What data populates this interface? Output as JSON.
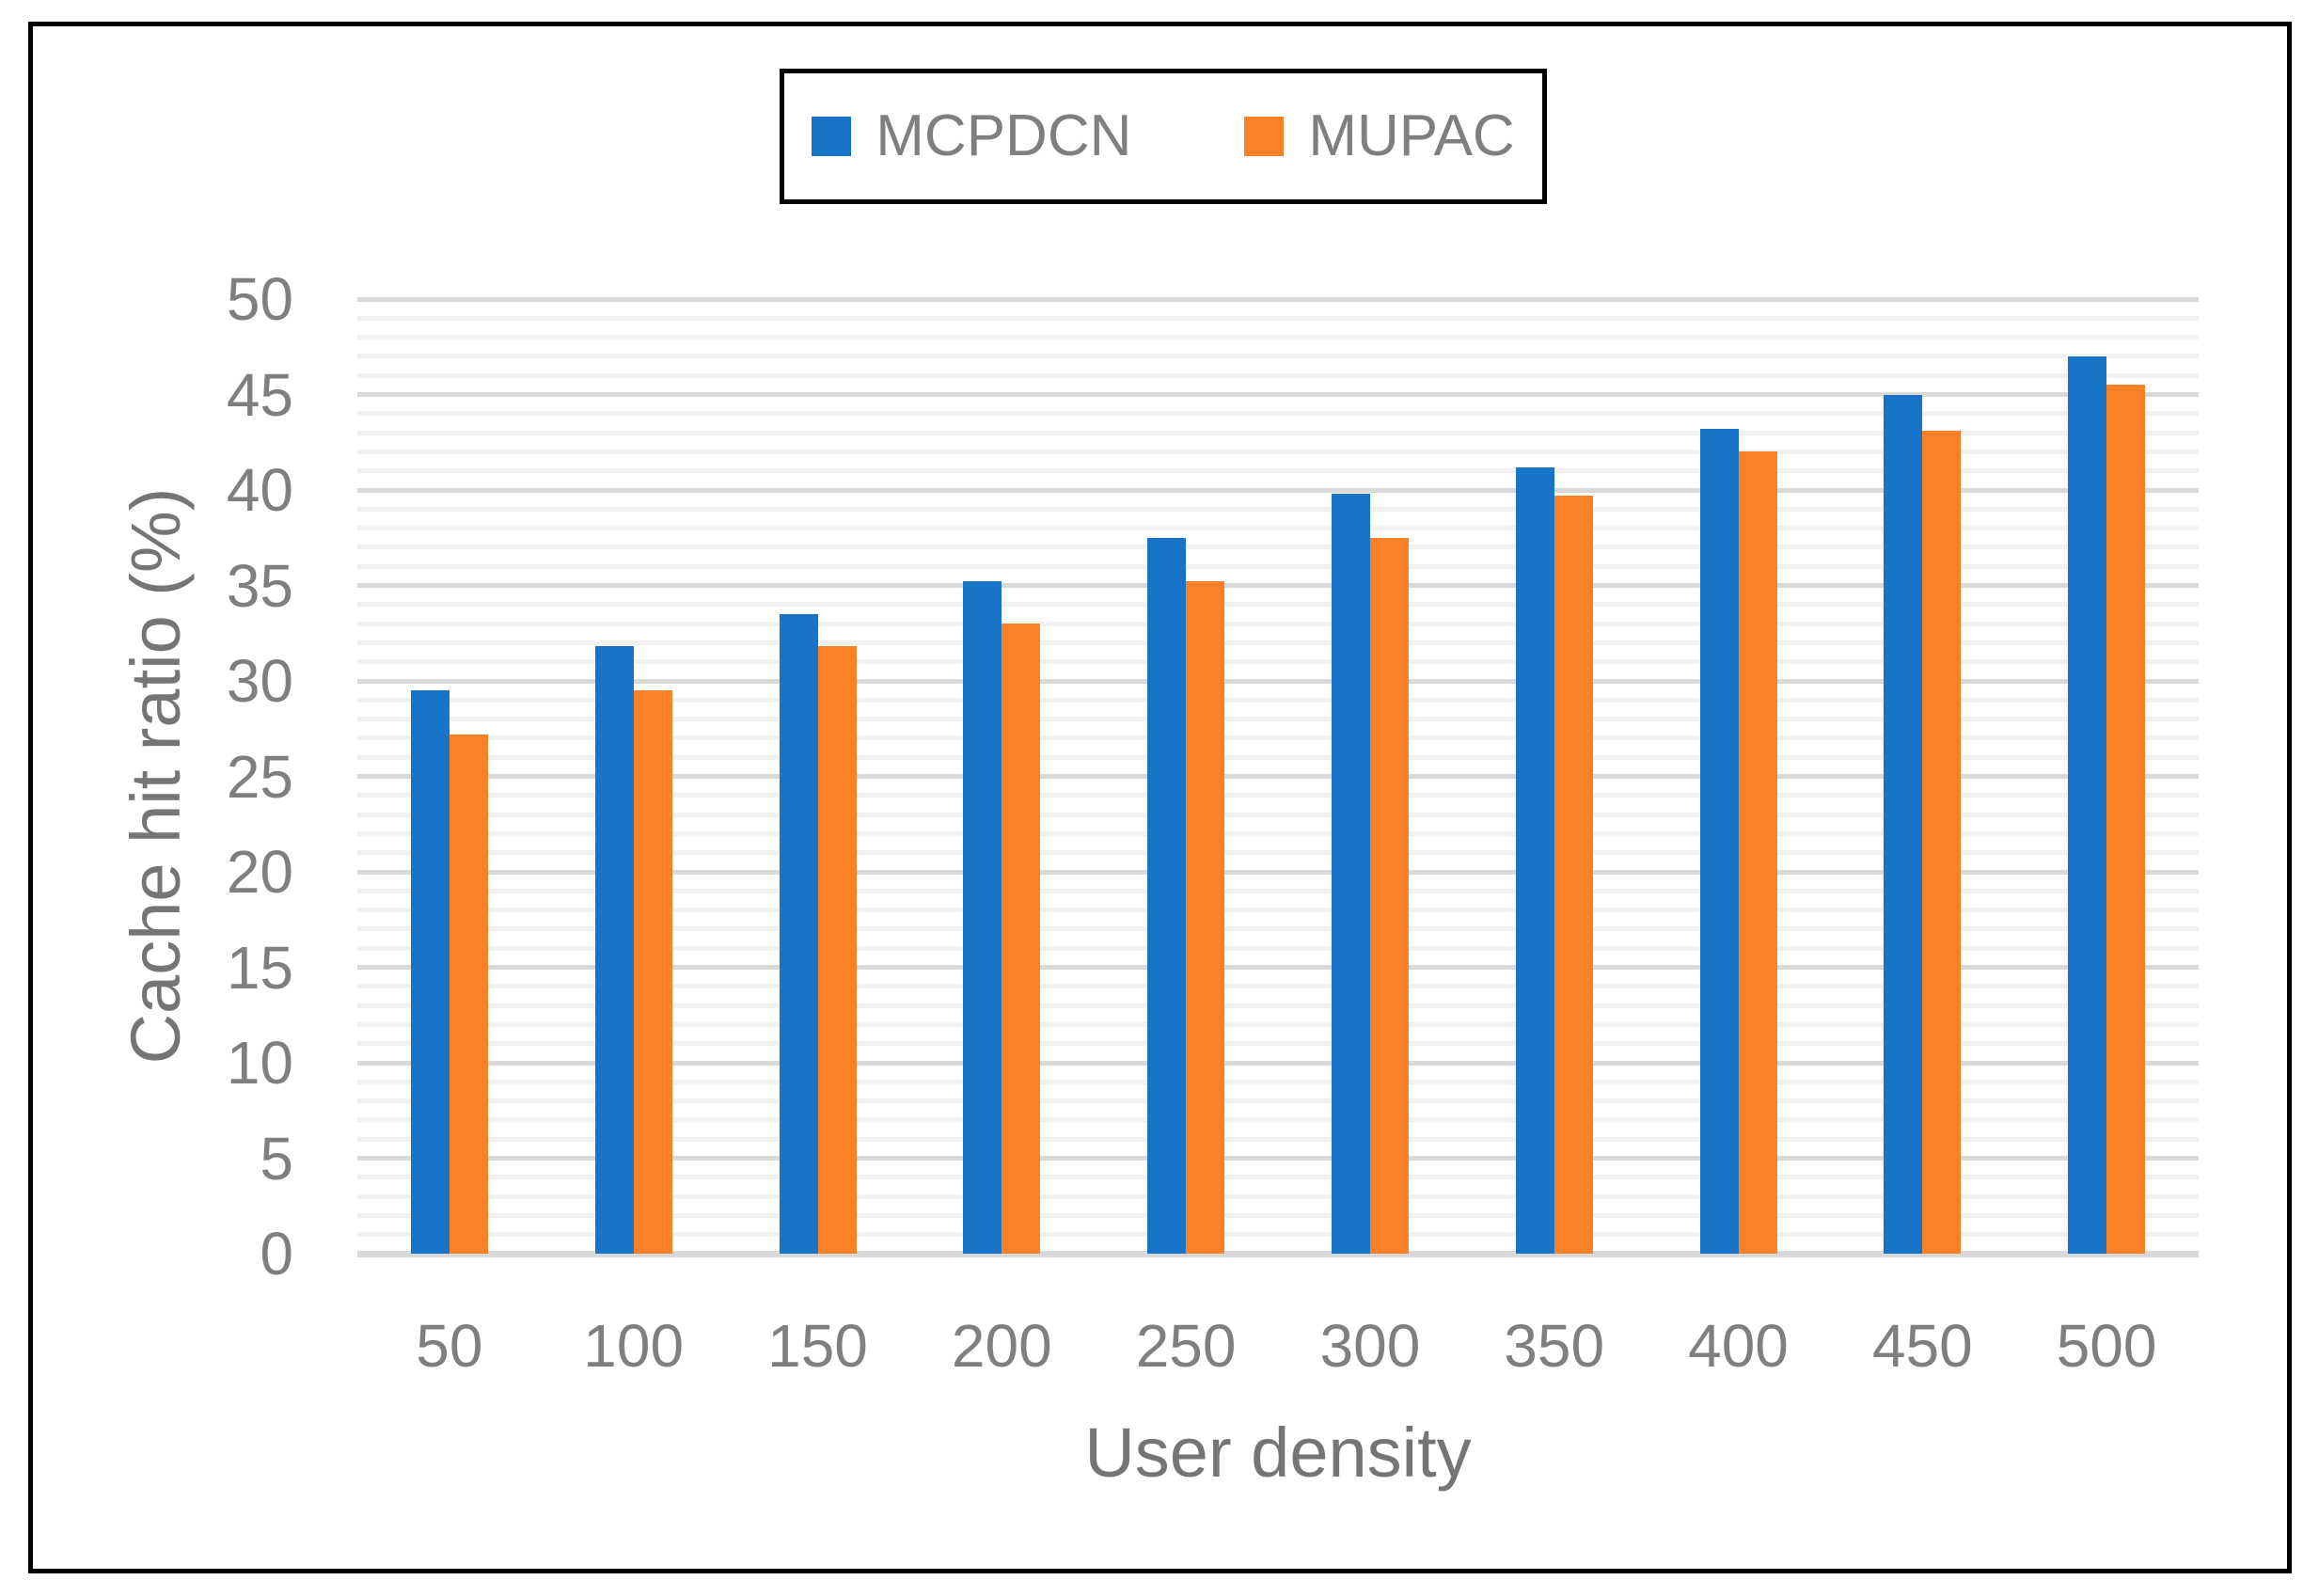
{
  "chart_data": {
    "type": "bar",
    "title": "",
    "xlabel": "User density",
    "ylabel": "Cache hit ratio (%)",
    "categories": [
      "50",
      "100",
      "150",
      "200",
      "250",
      "300",
      "350",
      "400",
      "450",
      "500"
    ],
    "series": [
      {
        "name": "MCPDCN",
        "color": "#1874C8",
        "values": [
          29.5,
          31.8,
          33.5,
          35.2,
          37.5,
          39.8,
          41.2,
          43.2,
          45.0,
          47.0
        ]
      },
      {
        "name": "MUPAC",
        "color": "#FC8026",
        "values": [
          27.2,
          29.5,
          31.8,
          33.0,
          35.2,
          37.5,
          39.7,
          42.0,
          43.1,
          45.5
        ]
      }
    ],
    "ylim": [
      0,
      50
    ],
    "ytick_step": 5,
    "yticks": [
      0,
      5,
      10,
      15,
      20,
      25,
      30,
      35,
      40,
      45,
      50
    ],
    "minor_grid_step": 1,
    "grid": true,
    "legend_position": "top-center"
  },
  "legend": {
    "items": [
      {
        "label": "MCPDCN"
      },
      {
        "label": "MUPAC"
      }
    ]
  },
  "styles": {
    "series1_color": "#1874C8",
    "series2_color": "#FC8026",
    "axis_text_color": "#7F7F7F",
    "grid_major_color": "#D9D9D9",
    "grid_minor_color": "#F1F1F1",
    "frame_color": "#000000",
    "background": "#FFFFFF"
  }
}
